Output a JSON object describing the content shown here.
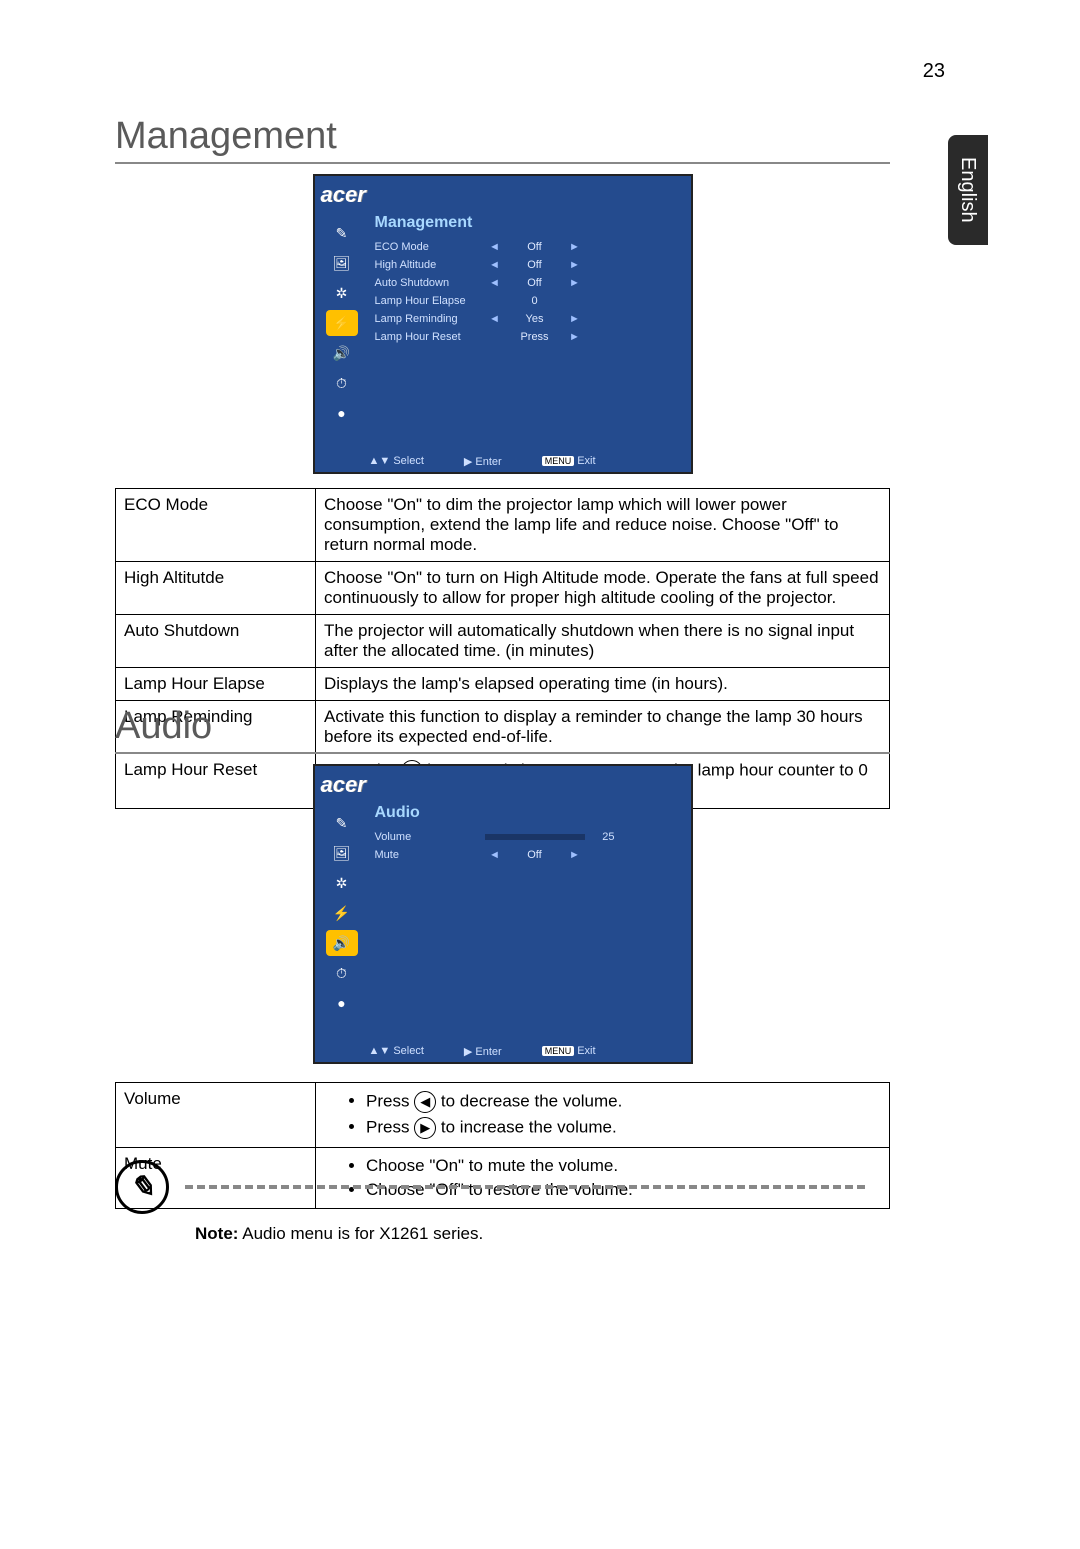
{
  "page_number": "23",
  "lang_tab": "English",
  "sections": {
    "management": {
      "title": "Management",
      "osd": {
        "logo": "acer",
        "header": "Management",
        "rows": [
          {
            "label": "ECO Mode",
            "value": "Off",
            "left": "◄",
            "right": "►"
          },
          {
            "label": "High Altitude",
            "value": "Off",
            "left": "◄",
            "right": "►"
          },
          {
            "label": "Auto Shutdown",
            "value": "Off",
            "left": "◄",
            "right": "►"
          },
          {
            "label": "Lamp Hour Elapse",
            "value": "0",
            "left": "",
            "right": ""
          },
          {
            "label": "Lamp Reminding",
            "value": "Yes",
            "left": "◄",
            "right": "►"
          },
          {
            "label": "Lamp Hour Reset",
            "value": "Press",
            "left": "",
            "right": "►"
          }
        ],
        "footer": {
          "select": "▲▼ Select",
          "enter": "▶  Enter",
          "exit_badge": "MENU",
          "exit": "Exit"
        },
        "selected_icon_index": 3
      },
      "table": [
        {
          "name": "ECO Mode",
          "desc": "Choose \"On\" to dim the projector lamp which will lower power consumption, extend the lamp life and reduce noise. Choose \"Off\" to return normal mode."
        },
        {
          "name": "High Altitutde",
          "desc": "Choose \"On\" to turn on High Altitude mode. Operate the fans at full speed continuously to allow for proper high altitude cooling of the projector."
        },
        {
          "name": "Auto Shutdown",
          "desc": "The projector will automatically shutdown when there is no signal input after the allocated time. (in minutes)"
        },
        {
          "name": "Lamp Hour Elapse",
          "desc": "Displays the lamp's elapsed operating time (in hours)."
        },
        {
          "name": "Lamp Reminding",
          "desc": "Activate this function to display a reminder to change the lamp 30 hours before its expected end-of-life."
        },
        {
          "name": "Lamp Hour Reset",
          "desc_pre": "Press the ",
          "btn": "▶",
          "desc_post": " button and choose \"Yes\" to turn the lamp hour counter to 0 hours."
        }
      ]
    },
    "audio": {
      "title": "Audio",
      "osd": {
        "logo": "acer",
        "header": "Audio",
        "volume_row": {
          "label": "Volume",
          "bar_pct": 25,
          "value": "25"
        },
        "mute_row": {
          "label": "Mute",
          "value": "Off",
          "left": "◄",
          "right": "►"
        },
        "footer": {
          "select": "▲▼ Select",
          "enter": "▶  Enter",
          "exit_badge": "MENU",
          "exit": "Exit"
        },
        "selected_icon_index": 4
      },
      "table": {
        "volume": {
          "name": "Volume",
          "items": [
            {
              "pre": "Press ",
              "btn": "◀",
              "post": " to decrease the volume."
            },
            {
              "pre": "Press ",
              "btn": "▶",
              "post": " to increase the volume."
            }
          ]
        },
        "mute": {
          "name": "Mute",
          "items": [
            {
              "text": "Choose \"On\" to mute the volume."
            },
            {
              "text": "Choose \"Off\" to restore the volume."
            }
          ]
        }
      }
    }
  },
  "note": {
    "bold": "Note:",
    "text": "  Audio menu is for X1261 series."
  },
  "osd_icons": [
    "✎",
    "🖼",
    "✲",
    "⚡",
    "🔊",
    "⏱",
    "●"
  ]
}
